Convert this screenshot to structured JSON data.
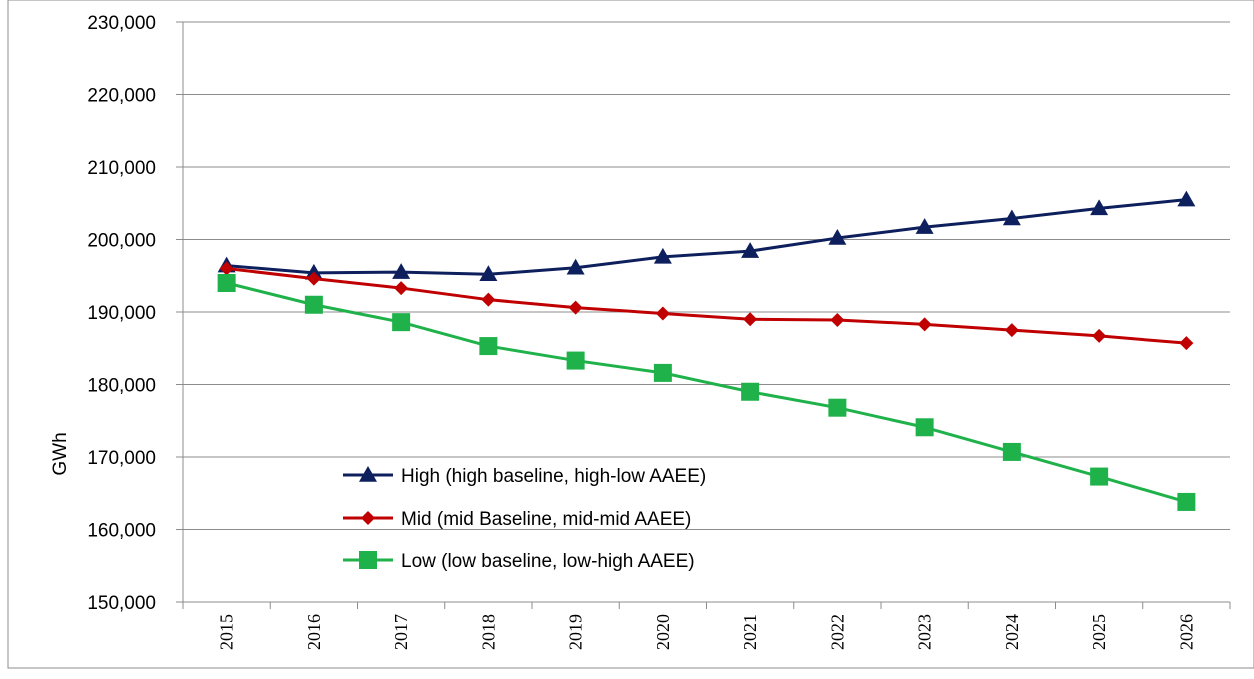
{
  "chart_data": {
    "type": "line",
    "title": "",
    "xlabel": "",
    "ylabel": "GWh",
    "ylim": [
      150000,
      230000
    ],
    "y_ticks": [
      150000,
      160000,
      170000,
      180000,
      190000,
      200000,
      210000,
      220000,
      230000
    ],
    "y_tick_labels": [
      "150,000",
      "160,000",
      "170,000",
      "180,000",
      "190,000",
      "200,000",
      "210,000",
      "220,000",
      "230,000"
    ],
    "categories": [
      "2015",
      "2016",
      "2017",
      "2018",
      "2019",
      "2020",
      "2021",
      "2022",
      "2023",
      "2024",
      "2025",
      "2026"
    ],
    "grid": "horizontal",
    "legend_position": "inside-lower-center",
    "series": [
      {
        "name": "High (high baseline, high-low AAEE)",
        "color": "#0d1f5c",
        "marker": "triangle",
        "values": [
          196400,
          195400,
          195500,
          195200,
          196100,
          197600,
          198400,
          200200,
          201700,
          202900,
          204300,
          205500
        ]
      },
      {
        "name": "Mid (mid Baseline, mid-mid AAEE)",
        "color": "#c00000",
        "marker": "diamond",
        "values": [
          196000,
          194600,
          193300,
          191700,
          190600,
          189800,
          189000,
          188900,
          188300,
          187500,
          186700,
          185700
        ]
      },
      {
        "name": "Low (low baseline, low-high AAEE)",
        "color": "#1fb24a",
        "marker": "square",
        "values": [
          194000,
          191000,
          188600,
          185300,
          183300,
          181600,
          179000,
          176800,
          174100,
          170700,
          167300,
          163800
        ]
      }
    ]
  }
}
